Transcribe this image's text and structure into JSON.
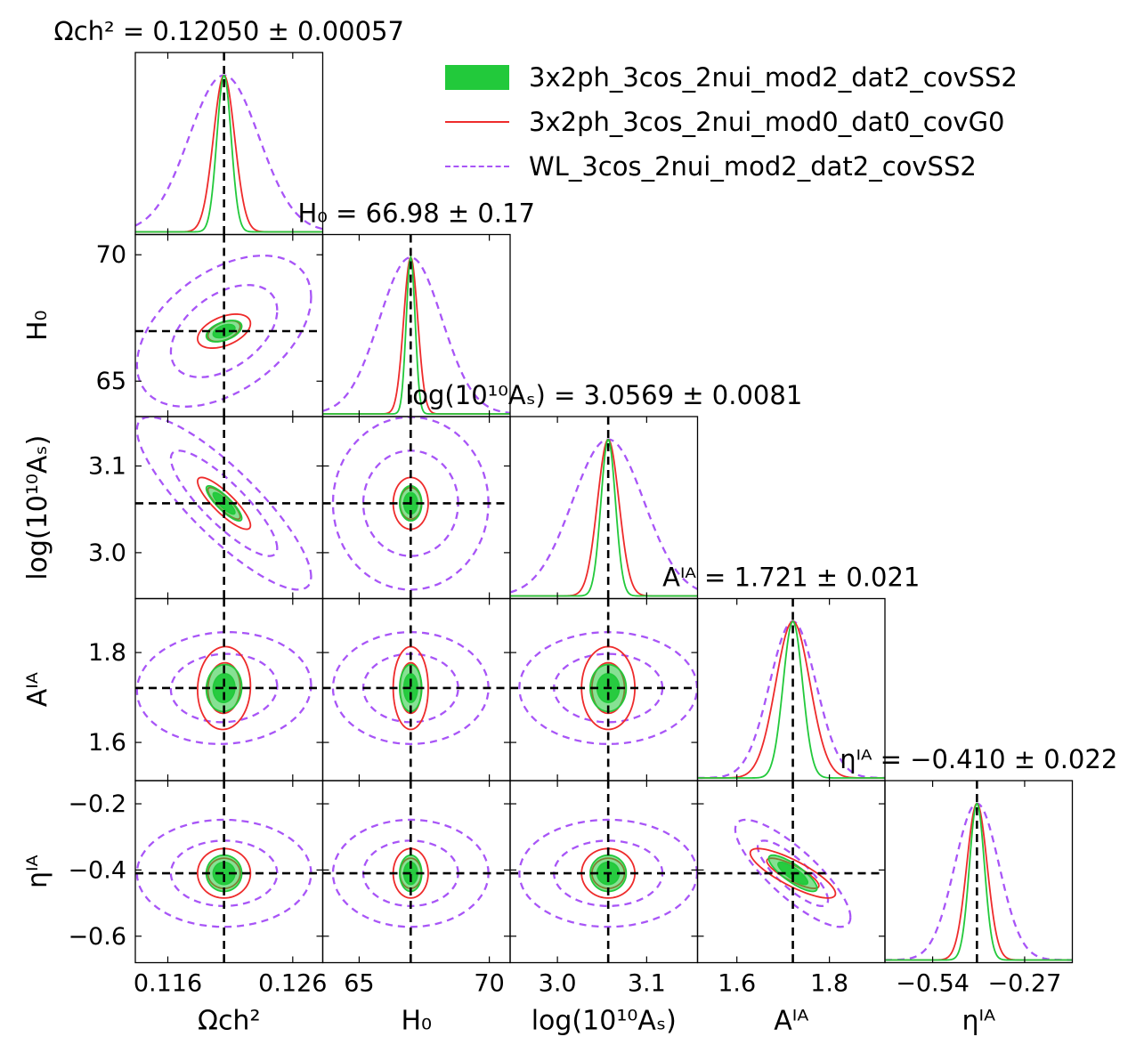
{
  "chart_data": {
    "type": "corner",
    "parameters": [
      {
        "key": "omch2",
        "xlabel": "Ωch²",
        "ylabel": "",
        "title": "Ωch² = 0.12050 ± 0.00057",
        "fiducial": 0.1205,
        "range": [
          0.1134,
          0.1284
        ],
        "ticks": [
          0.116,
          0.126
        ],
        "tick_labels": [
          "0.116",
          "0.126"
        ]
      },
      {
        "key": "H0",
        "xlabel": "H₀",
        "ylabel": "H₀",
        "title": "H₀ = 66.98 ± 0.17",
        "fiducial": 66.98,
        "range": [
          63.6,
          70.8
        ],
        "ticks": [
          65,
          70
        ],
        "tick_labels": [
          "65",
          "70"
        ]
      },
      {
        "key": "logAs",
        "xlabel": "log(10¹⁰Aₛ)",
        "ylabel": "log(10¹⁰Aₛ)",
        "title": "log(10¹⁰Aₛ) = 3.0569 ± 0.0081",
        "fiducial": 3.0569,
        "range": [
          2.947,
          3.157
        ],
        "ticks": [
          3.0,
          3.1
        ],
        "tick_labels": [
          "3.0",
          "3.1"
        ]
      },
      {
        "key": "AIA",
        "xlabel": "Aᴵᴬ",
        "ylabel": "Aᴵᴬ",
        "title": "Aᴵᴬ = 1.721 ± 0.021",
        "fiducial": 1.721,
        "range": [
          1.515,
          1.92
        ],
        "ticks": [
          1.6,
          1.8
        ],
        "tick_labels": [
          "1.6",
          "1.8"
        ]
      },
      {
        "key": "etaIA",
        "xlabel": "ηᴵᴬ",
        "ylabel": "ηᴵᴬ",
        "title": "ηᴵᴬ = −0.410 ± 0.022",
        "fiducial": -0.41,
        "range": [
          -0.68,
          -0.13
        ],
        "ticks": [
          -0.54,
          -0.27
        ],
        "tick_labels": [
          "−0.54",
          "−0.27"
        ]
      }
    ],
    "y_ticks": {
      "H0": {
        "values": [
          70,
          65
        ],
        "labels": [
          "70",
          "65"
        ]
      },
      "logAs": {
        "values": [
          3.1,
          3.0
        ],
        "labels": [
          "3.1",
          "3.0"
        ]
      },
      "AIA": {
        "values": [
          1.8,
          1.6
        ],
        "labels": [
          "1.8",
          "1.6"
        ]
      },
      "etaIA": {
        "values": [
          -0.2,
          -0.4,
          -0.6
        ],
        "labels": [
          "−0.2",
          "−0.4",
          "−0.6"
        ]
      }
    },
    "series": [
      {
        "name": "3x2ph_3cos_2nui_mod2_dat2_covSS2",
        "style": "filled",
        "color": "#22c93b",
        "sigma": [
          0.00057,
          0.17,
          0.0081,
          0.021,
          0.022
        ]
      },
      {
        "name": "3x2ph_3cos_2nui_mod0_dat0_covG0",
        "style": "solid",
        "color": "#ee2b2b",
        "sigma": [
          0.00085,
          0.27,
          0.012,
          0.037,
          0.03
        ]
      },
      {
        "name": "WL_3cos_2nui_mod2_dat2_covSS2",
        "style": "dashed",
        "color": "#a855f7",
        "sigma": [
          0.0028,
          1.2,
          0.04,
          0.05,
          0.065
        ]
      }
    ],
    "correlations": {
      "omch2-H0": 0.45,
      "omch2-logAs": -0.85,
      "omch2-AIA": 0.05,
      "omch2-etaIA": 0.0,
      "H0-logAs": 0.0,
      "H0-AIA": 0.0,
      "H0-etaIA": 0.0,
      "logAs-AIA": 0.0,
      "logAs-etaIA": 0.0,
      "AIA-etaIA": -0.82
    },
    "legend_position": "top-right",
    "grid": false
  }
}
